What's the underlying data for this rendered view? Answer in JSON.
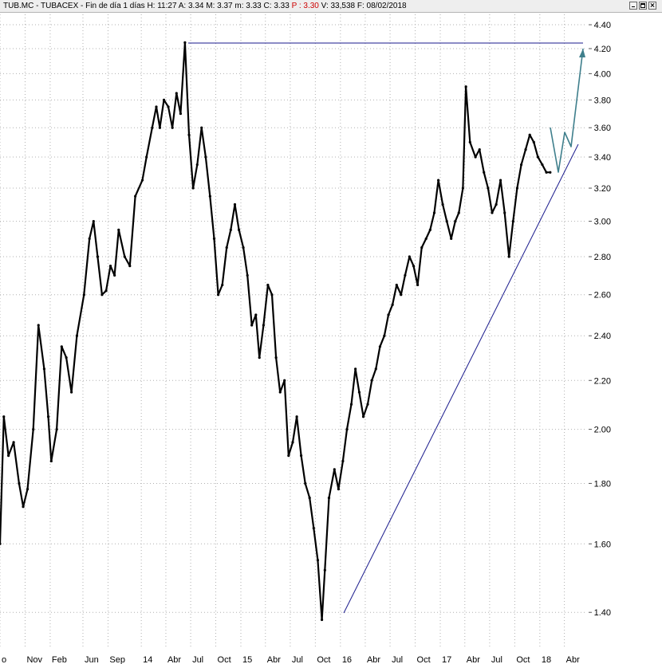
{
  "header": {
    "ticker": "TUB.MC - TUBACEX",
    "period": "Fin de día 1 días",
    "h_label": "H:",
    "h_val": "11:27",
    "a_label": "A:",
    "a_val": "3.34",
    "m_label": "M:",
    "m_val": "3.37",
    "mm_label": "m:",
    "mm_val": "3.33",
    "c_label": "C:",
    "c_val": "3.33",
    "p_label": "P :",
    "p_val": "3.30",
    "v_label": "V:",
    "v_val": "33,538",
    "f_label": "F:",
    "f_val": "08/02/2018",
    "min_icon": "minimize-icon",
    "max_icon": "maximize-icon",
    "close_icon": "close-icon"
  },
  "colors": {
    "price": "#000000",
    "trendline": "#1a1a8c",
    "projection": "#3f7f8c",
    "grid": "#b0b0b0",
    "yaxis_text": "#000000"
  },
  "chart_data": {
    "type": "line",
    "y_scale": "log",
    "ylim": [
      1.31,
      4.49
    ],
    "ytick_labels": [
      "1.40",
      "1.60",
      "1.80",
      "2.00",
      "2.20",
      "2.40",
      "2.60",
      "2.80",
      "3.00",
      "3.20",
      "3.40",
      "3.60",
      "3.80",
      "4.00",
      "4.20",
      "4.40"
    ],
    "xlim": [
      "2012-08-01",
      "2018-06-23"
    ],
    "xticks": [
      {
        "label": "o",
        "date": "2012-08-01"
      },
      {
        "label": "Nov",
        "date": "2012-11-01"
      },
      {
        "label": "Feb",
        "date": "2013-02-01"
      },
      {
        "label": "Jun",
        "date": "2013-06-01"
      },
      {
        "label": "Sep",
        "date": "2013-09-01"
      },
      {
        "label": "14",
        "date": "2014-01-01"
      },
      {
        "label": "Abr",
        "date": "2014-04-01"
      },
      {
        "label": "Jul",
        "date": "2014-07-01"
      },
      {
        "label": "Oct",
        "date": "2014-10-01"
      },
      {
        "label": "15",
        "date": "2015-01-01"
      },
      {
        "label": "Abr",
        "date": "2015-04-01"
      },
      {
        "label": "Jul",
        "date": "2015-07-01"
      },
      {
        "label": "Oct",
        "date": "2015-10-01"
      },
      {
        "label": "16",
        "date": "2016-01-01"
      },
      {
        "label": "Abr",
        "date": "2016-04-01"
      },
      {
        "label": "Jul",
        "date": "2016-07-01"
      },
      {
        "label": "Oct",
        "date": "2016-10-01"
      },
      {
        "label": "17",
        "date": "2017-01-01"
      },
      {
        "label": "Abr",
        "date": "2017-04-01"
      },
      {
        "label": "Jul",
        "date": "2017-07-01"
      },
      {
        "label": "Oct",
        "date": "2017-10-01"
      },
      {
        "label": "18",
        "date": "2018-01-01"
      },
      {
        "label": "Abr",
        "date": "2018-04-01"
      }
    ],
    "grid": true,
    "series": [
      {
        "values": [
          [
            "2012-08-01",
            1.6
          ],
          [
            "2012-08-15",
            2.05
          ],
          [
            "2012-09-01",
            1.9
          ],
          [
            "2012-09-20",
            1.95
          ],
          [
            "2012-10-10",
            1.8
          ],
          [
            "2012-10-25",
            1.72
          ],
          [
            "2012-11-10",
            1.78
          ],
          [
            "2012-12-01",
            2.0
          ],
          [
            "2012-12-20",
            2.45
          ],
          [
            "2013-01-10",
            2.25
          ],
          [
            "2013-01-25",
            2.05
          ],
          [
            "2013-02-05",
            1.88
          ],
          [
            "2013-02-25",
            2.0
          ],
          [
            "2013-03-15",
            2.35
          ],
          [
            "2013-04-01",
            2.3
          ],
          [
            "2013-04-20",
            2.15
          ],
          [
            "2013-05-10",
            2.4
          ],
          [
            "2013-06-05",
            2.6
          ],
          [
            "2013-06-25",
            2.9
          ],
          [
            "2013-07-10",
            3.0
          ],
          [
            "2013-07-25",
            2.8
          ],
          [
            "2013-08-10",
            2.6
          ],
          [
            "2013-08-25",
            2.62
          ],
          [
            "2013-09-10",
            2.75
          ],
          [
            "2013-09-25",
            2.7
          ],
          [
            "2013-10-10",
            2.95
          ],
          [
            "2013-11-01",
            2.8
          ],
          [
            "2013-11-20",
            2.75
          ],
          [
            "2013-12-10",
            3.15
          ],
          [
            "2014-01-05",
            3.25
          ],
          [
            "2014-01-20",
            3.4
          ],
          [
            "2014-02-10",
            3.6
          ],
          [
            "2014-02-25",
            3.75
          ],
          [
            "2014-03-10",
            3.6
          ],
          [
            "2014-03-25",
            3.8
          ],
          [
            "2014-04-10",
            3.75
          ],
          [
            "2014-04-25",
            3.6
          ],
          [
            "2014-05-10",
            3.85
          ],
          [
            "2014-05-25",
            3.7
          ],
          [
            "2014-06-10",
            4.25
          ],
          [
            "2014-06-25",
            3.55
          ],
          [
            "2014-07-10",
            3.2
          ],
          [
            "2014-07-25",
            3.35
          ],
          [
            "2014-08-10",
            3.6
          ],
          [
            "2014-08-25",
            3.4
          ],
          [
            "2014-09-10",
            3.15
          ],
          [
            "2014-09-25",
            2.9
          ],
          [
            "2014-10-10",
            2.6
          ],
          [
            "2014-10-25",
            2.65
          ],
          [
            "2014-11-10",
            2.85
          ],
          [
            "2014-11-25",
            2.95
          ],
          [
            "2014-12-10",
            3.1
          ],
          [
            "2014-12-25",
            2.95
          ],
          [
            "2015-01-10",
            2.85
          ],
          [
            "2015-01-25",
            2.7
          ],
          [
            "2015-02-10",
            2.45
          ],
          [
            "2015-02-25",
            2.5
          ],
          [
            "2015-03-10",
            2.3
          ],
          [
            "2015-03-25",
            2.45
          ],
          [
            "2015-04-10",
            2.65
          ],
          [
            "2015-04-25",
            2.6
          ],
          [
            "2015-05-10",
            2.3
          ],
          [
            "2015-05-25",
            2.15
          ],
          [
            "2015-06-10",
            2.2
          ],
          [
            "2015-06-25",
            1.9
          ],
          [
            "2015-07-10",
            1.95
          ],
          [
            "2015-07-25",
            2.05
          ],
          [
            "2015-08-10",
            1.9
          ],
          [
            "2015-08-25",
            1.8
          ],
          [
            "2015-09-10",
            1.75
          ],
          [
            "2015-09-25",
            1.65
          ],
          [
            "2015-10-10",
            1.55
          ],
          [
            "2015-10-25",
            1.38
          ],
          [
            "2015-11-05",
            1.52
          ],
          [
            "2015-11-20",
            1.75
          ],
          [
            "2015-12-10",
            1.85
          ],
          [
            "2015-12-25",
            1.78
          ],
          [
            "2016-01-10",
            1.88
          ],
          [
            "2016-01-25",
            2.0
          ],
          [
            "2016-02-10",
            2.1
          ],
          [
            "2016-02-25",
            2.25
          ],
          [
            "2016-03-10",
            2.15
          ],
          [
            "2016-03-25",
            2.05
          ],
          [
            "2016-04-10",
            2.1
          ],
          [
            "2016-04-25",
            2.2
          ],
          [
            "2016-05-10",
            2.25
          ],
          [
            "2016-05-25",
            2.35
          ],
          [
            "2016-06-10",
            2.4
          ],
          [
            "2016-06-25",
            2.5
          ],
          [
            "2016-07-10",
            2.55
          ],
          [
            "2016-07-25",
            2.65
          ],
          [
            "2016-08-10",
            2.6
          ],
          [
            "2016-08-25",
            2.7
          ],
          [
            "2016-09-10",
            2.8
          ],
          [
            "2016-09-25",
            2.75
          ],
          [
            "2016-10-10",
            2.65
          ],
          [
            "2016-10-25",
            2.85
          ],
          [
            "2016-11-10",
            2.9
          ],
          [
            "2016-11-25",
            2.95
          ],
          [
            "2016-12-10",
            3.05
          ],
          [
            "2016-12-25",
            3.25
          ],
          [
            "2017-01-10",
            3.1
          ],
          [
            "2017-01-25",
            3.0
          ],
          [
            "2017-02-10",
            2.9
          ],
          [
            "2017-02-25",
            3.0
          ],
          [
            "2017-03-10",
            3.05
          ],
          [
            "2017-03-25",
            3.2
          ],
          [
            "2017-04-05",
            3.9
          ],
          [
            "2017-04-20",
            3.5
          ],
          [
            "2017-05-10",
            3.4
          ],
          [
            "2017-05-25",
            3.45
          ],
          [
            "2017-06-10",
            3.3
          ],
          [
            "2017-06-25",
            3.2
          ],
          [
            "2017-07-10",
            3.05
          ],
          [
            "2017-07-25",
            3.1
          ],
          [
            "2017-08-10",
            3.25
          ],
          [
            "2017-08-25",
            3.05
          ],
          [
            "2017-09-10",
            2.8
          ],
          [
            "2017-09-25",
            3.0
          ],
          [
            "2017-10-10",
            3.2
          ],
          [
            "2017-10-25",
            3.35
          ],
          [
            "2017-11-10",
            3.45
          ],
          [
            "2017-11-25",
            3.55
          ],
          [
            "2017-12-10",
            3.5
          ],
          [
            "2017-12-25",
            3.4
          ],
          [
            "2018-01-10",
            3.35
          ],
          [
            "2018-01-25",
            3.3
          ],
          [
            "2018-02-08",
            3.3
          ]
        ]
      }
    ]
  }
}
